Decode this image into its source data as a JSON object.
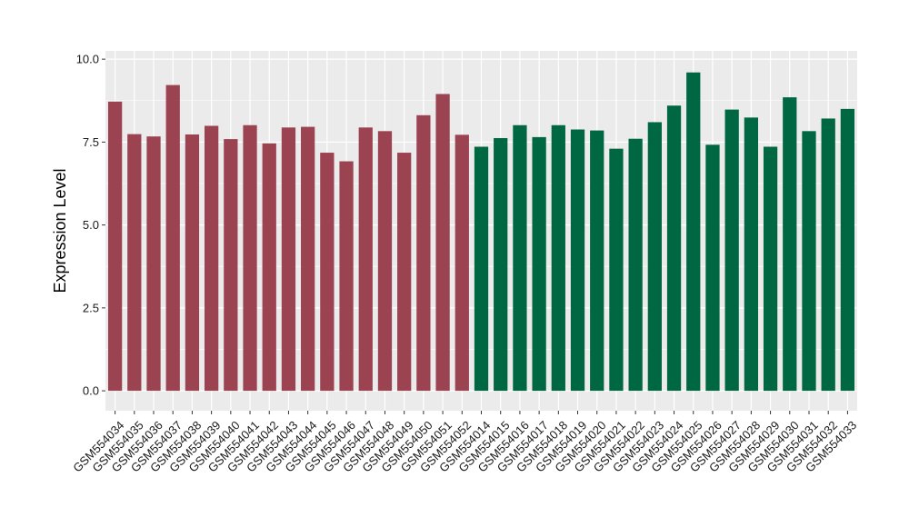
{
  "chart_data": {
    "type": "bar",
    "title": "",
    "xlabel": "",
    "ylabel": "Expression Level",
    "ylim": [
      0,
      10.0
    ],
    "yticks": [
      "0.0",
      "2.5",
      "5.0",
      "7.5",
      "10.0"
    ],
    "ytick_values": [
      0,
      2.5,
      5.0,
      7.5,
      10.0
    ],
    "grid": true,
    "legend": "none",
    "colors": {
      "group_a": "#9c4352",
      "group_b": "#006743",
      "panel": "#ebebeb",
      "gridline": "#ffffff"
    },
    "categories": [
      "GSM554034",
      "GSM554035",
      "GSM554036",
      "GSM554037",
      "GSM554038",
      "GSM554039",
      "GSM554040",
      "GSM554041",
      "GSM554042",
      "GSM554043",
      "GSM554044",
      "GSM554045",
      "GSM554046",
      "GSM554047",
      "GSM554048",
      "GSM554049",
      "GSM554050",
      "GSM554051",
      "GSM554052",
      "GSM554014",
      "GSM554015",
      "GSM554016",
      "GSM554017",
      "GSM554018",
      "GSM554019",
      "GSM554020",
      "GSM554021",
      "GSM554022",
      "GSM554023",
      "GSM554024",
      "GSM554025",
      "GSM554026",
      "GSM554027",
      "GSM554028",
      "GSM554029",
      "GSM554030",
      "GSM554031",
      "GSM554032",
      "GSM554033"
    ],
    "values": [
      8.72,
      7.74,
      7.67,
      9.22,
      7.73,
      7.99,
      7.59,
      8.01,
      7.46,
      7.94,
      7.96,
      7.18,
      6.92,
      7.94,
      7.83,
      7.18,
      8.31,
      8.95,
      7.72,
      7.36,
      7.62,
      8.01,
      7.65,
      8.01,
      7.88,
      7.85,
      7.3,
      7.6,
      8.1,
      8.6,
      9.6,
      7.42,
      8.48,
      8.24,
      7.36,
      8.85,
      7.83,
      8.21,
      8.5
    ],
    "groups": [
      "a",
      "a",
      "a",
      "a",
      "a",
      "a",
      "a",
      "a",
      "a",
      "a",
      "a",
      "a",
      "a",
      "a",
      "a",
      "a",
      "a",
      "a",
      "a",
      "b",
      "b",
      "b",
      "b",
      "b",
      "b",
      "b",
      "b",
      "b",
      "b",
      "b",
      "b",
      "b",
      "b",
      "b",
      "b",
      "b",
      "b",
      "b",
      "b"
    ]
  }
}
